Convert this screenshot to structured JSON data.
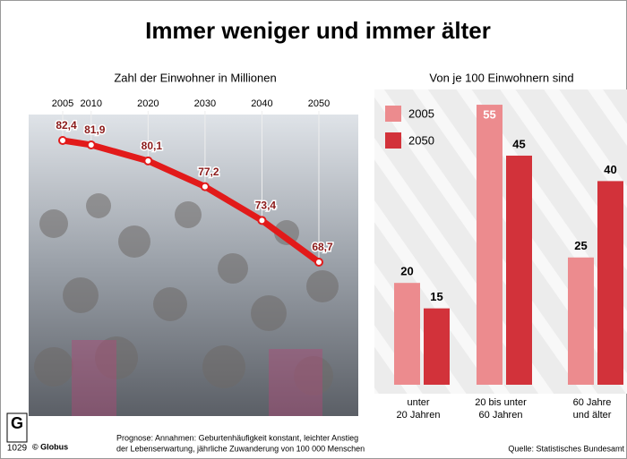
{
  "header": {
    "title": "Immer weniger und immer älter"
  },
  "chart_data": [
    {
      "type": "line",
      "title": "Zahl der Einwohner in Millionen",
      "color": "#e21a1a",
      "x": [
        2005,
        2010,
        2020,
        2030,
        2040,
        2050
      ],
      "values": [
        82.4,
        81.9,
        80.1,
        77.2,
        73.4,
        68.7
      ],
      "value_labels": [
        "82,4",
        "81,9",
        "80,1",
        "77,2",
        "73,4",
        "68,7"
      ]
    },
    {
      "type": "bar",
      "title": "Von je 100 Einwohnern sind",
      "categories": [
        [
          "unter",
          "20 Jahren"
        ],
        [
          "20 bis unter",
          "60 Jahren"
        ],
        [
          "60 Jahre",
          "und älter"
        ]
      ],
      "series": [
        {
          "name": "2005",
          "color": "#ec8b8e",
          "values": [
            20,
            55,
            25
          ]
        },
        {
          "name": "2050",
          "color": "#d2323a",
          "values": [
            15,
            45,
            40
          ]
        }
      ]
    }
  ],
  "footer": {
    "logo": "1029",
    "copyright": "© Globus",
    "note": [
      "Prognose: Annahmen: Geburtenhäufigkeit konstant, leichter Anstieg",
      "der Lebenserwartung, jährliche Zuwanderung von 100 000 Menschen"
    ],
    "source": "Quelle: Statistisches Bundesamt"
  }
}
